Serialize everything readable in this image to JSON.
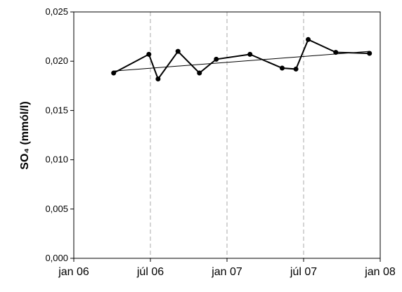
{
  "chart_data": {
    "type": "line",
    "ylabel": "SO₄ (mmól/l)",
    "x": [
      2006.26,
      2006.49,
      2006.55,
      2006.68,
      2006.82,
      2006.93,
      2007.15,
      2007.36,
      2007.45,
      2007.53,
      2007.71,
      2007.93
    ],
    "series": [
      {
        "color": "#000000",
        "values": [
          0.0188,
          0.0207,
          0.0182,
          0.021,
          0.0188,
          0.0202,
          0.0207,
          0.0193,
          0.0192,
          0.0222,
          0.0209,
          0.0208
        ]
      }
    ],
    "trendline": {
      "x": [
        2006.26,
        2007.93
      ],
      "values": [
        0.019,
        0.021
      ],
      "color": "#000000"
    },
    "xlim": [
      2006,
      2008
    ],
    "xticks": [
      {
        "value": 2006,
        "label": "jan 06"
      },
      {
        "value": 2006.5,
        "label": "júl 06"
      },
      {
        "value": 2007,
        "label": "jan 07"
      },
      {
        "value": 2007.5,
        "label": "júl 07"
      },
      {
        "value": 2008,
        "label": "jan 08"
      }
    ],
    "ylim": [
      0,
      0.025
    ],
    "yticks": [
      {
        "value": 0,
        "label": "0,000"
      },
      {
        "value": 0.005,
        "label": "0,005"
      },
      {
        "value": 0.01,
        "label": "0,010"
      },
      {
        "value": 0.015,
        "label": "0,015"
      },
      {
        "value": 0.02,
        "label": "0,020"
      },
      {
        "value": 0.025,
        "label": "0,025"
      }
    ],
    "grid": "x"
  }
}
